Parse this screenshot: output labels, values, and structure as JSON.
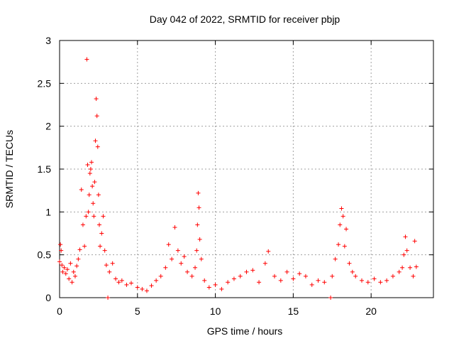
{
  "chart_data": {
    "type": "scatter",
    "title": "Day 042 of 2022, SRMTID for receiver pbjp",
    "xlabel": "GPS time / hours",
    "ylabel": "SRMTID / TECUs",
    "xlim": [
      0,
      24
    ],
    "ylim": [
      0,
      3
    ],
    "x_ticks": [
      0,
      5,
      10,
      15,
      20
    ],
    "x_tick_labels": [
      "0",
      "5",
      "10",
      "15",
      "20"
    ],
    "y_ticks": [
      0,
      0.5,
      1,
      1.5,
      2,
      2.5,
      3
    ],
    "y_tick_labels": [
      "0",
      "0.5",
      "1",
      "1.5",
      "2",
      "2.5",
      "3"
    ],
    "grid": true,
    "marker": "+",
    "series": [
      {
        "name": "SRMTID",
        "color": "#ff0000",
        "x": [
          0.0,
          0.05,
          0.1,
          0.15,
          0.2,
          0.3,
          0.4,
          0.5,
          0.6,
          0.7,
          0.8,
          0.9,
          1.0,
          1.1,
          1.2,
          1.3,
          1.4,
          1.5,
          1.6,
          1.7,
          1.75,
          1.8,
          1.85,
          1.9,
          1.95,
          2.0,
          2.05,
          2.1,
          2.15,
          2.2,
          2.25,
          2.3,
          2.35,
          2.4,
          2.45,
          2.5,
          2.55,
          2.6,
          2.7,
          2.8,
          2.9,
          3.0,
          3.1,
          3.2,
          3.4,
          3.6,
          3.8,
          4.0,
          4.3,
          4.6,
          5.0,
          5.3,
          5.6,
          5.9,
          6.2,
          6.5,
          6.8,
          7.0,
          7.2,
          7.4,
          7.6,
          7.8,
          8.0,
          8.2,
          8.5,
          8.7,
          8.8,
          8.85,
          8.9,
          8.95,
          9.0,
          9.1,
          9.3,
          9.6,
          10.0,
          10.4,
          10.8,
          11.2,
          11.6,
          12.0,
          12.4,
          12.8,
          13.2,
          13.4,
          13.8,
          14.2,
          14.6,
          15.0,
          15.4,
          15.8,
          16.2,
          16.6,
          17.0,
          17.4,
          17.5,
          17.7,
          17.9,
          18.0,
          18.1,
          18.2,
          18.3,
          18.4,
          18.6,
          18.8,
          19.0,
          19.4,
          19.8,
          20.2,
          20.6,
          21.0,
          21.4,
          21.8,
          22.0,
          22.1,
          22.2,
          22.3,
          22.5,
          22.7,
          22.8,
          22.9
        ],
        "values": [
          0.42,
          0.62,
          0.55,
          0.38,
          0.3,
          0.35,
          0.28,
          0.33,
          0.22,
          0.4,
          0.18,
          0.3,
          0.25,
          0.37,
          0.45,
          0.56,
          1.26,
          0.85,
          0.6,
          0.95,
          2.78,
          1.55,
          1.0,
          1.2,
          1.45,
          1.5,
          1.58,
          1.3,
          1.1,
          0.95,
          1.35,
          1.83,
          2.32,
          2.12,
          1.76,
          1.2,
          0.85,
          0.6,
          0.75,
          0.95,
          0.55,
          0.38,
          0.0,
          0.3,
          0.4,
          0.22,
          0.18,
          0.2,
          0.15,
          0.17,
          0.12,
          0.1,
          0.08,
          0.14,
          0.2,
          0.25,
          0.35,
          0.62,
          0.45,
          0.82,
          0.55,
          0.4,
          0.48,
          0.3,
          0.25,
          0.35,
          0.55,
          0.85,
          1.22,
          1.05,
          0.68,
          0.45,
          0.2,
          0.12,
          0.15,
          0.1,
          0.18,
          0.22,
          0.25,
          0.3,
          0.32,
          0.18,
          0.4,
          0.54,
          0.25,
          0.2,
          0.3,
          0.22,
          0.28,
          0.25,
          0.15,
          0.2,
          0.18,
          0.0,
          0.25,
          0.45,
          0.62,
          0.85,
          1.04,
          0.95,
          0.6,
          0.8,
          0.4,
          0.3,
          0.25,
          0.2,
          0.18,
          0.22,
          0.18,
          0.2,
          0.25,
          0.3,
          0.35,
          0.5,
          0.71,
          0.55,
          0.35,
          0.25,
          0.66,
          0.36
        ]
      }
    ]
  }
}
